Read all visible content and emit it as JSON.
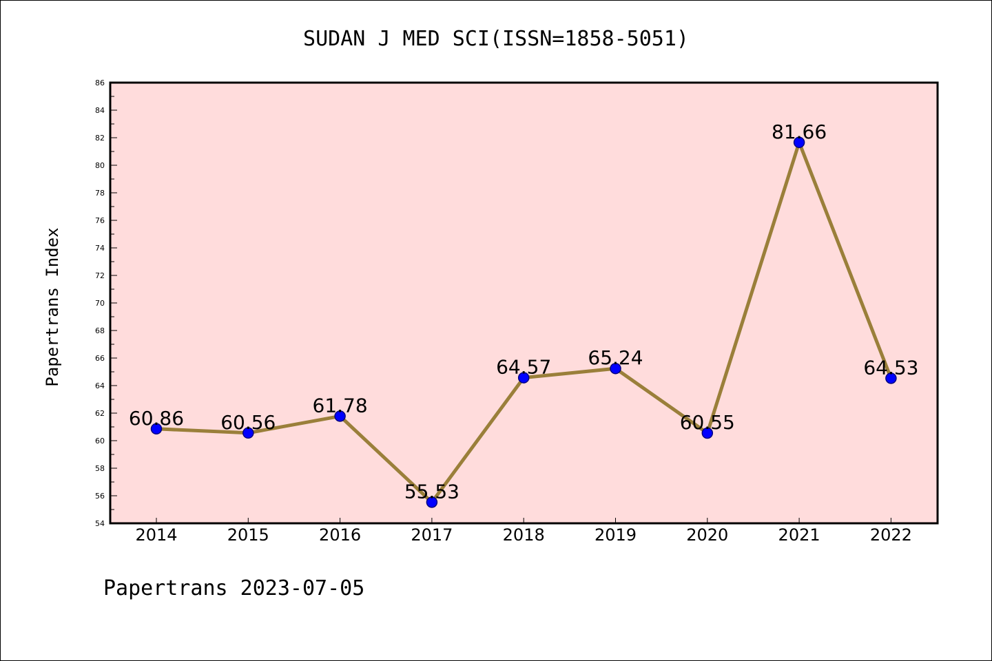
{
  "chart_data": {
    "type": "line",
    "title": "SUDAN J MED SCI(ISSN=1858-5051)",
    "xlabel": "",
    "ylabel": "Papertrans Index",
    "categories": [
      "2014",
      "2015",
      "2016",
      "2017",
      "2018",
      "2019",
      "2020",
      "2021",
      "2022"
    ],
    "values": [
      60.86,
      60.56,
      61.78,
      55.53,
      64.57,
      65.24,
      60.55,
      81.66,
      64.53
    ],
    "data_labels": [
      "60.86",
      "60.56",
      "61.78",
      "55.53",
      "64.57",
      "65.24",
      "60.55",
      "81.66",
      "64.53"
    ],
    "ylim": [
      54,
      86
    ],
    "yticks": [
      "54",
      "56",
      "58",
      "60",
      "62",
      "64",
      "66",
      "68",
      "70",
      "72",
      "74",
      "76",
      "78",
      "80",
      "82",
      "84",
      "86"
    ],
    "grid": false,
    "legend": "none",
    "colors": {
      "plot_background": "#ffdcdc",
      "line": "#9a7f3a",
      "marker": "#0000ff",
      "marker_edge": "#000080"
    }
  },
  "footer": {
    "text": "Papertrans 2023-07-05"
  }
}
